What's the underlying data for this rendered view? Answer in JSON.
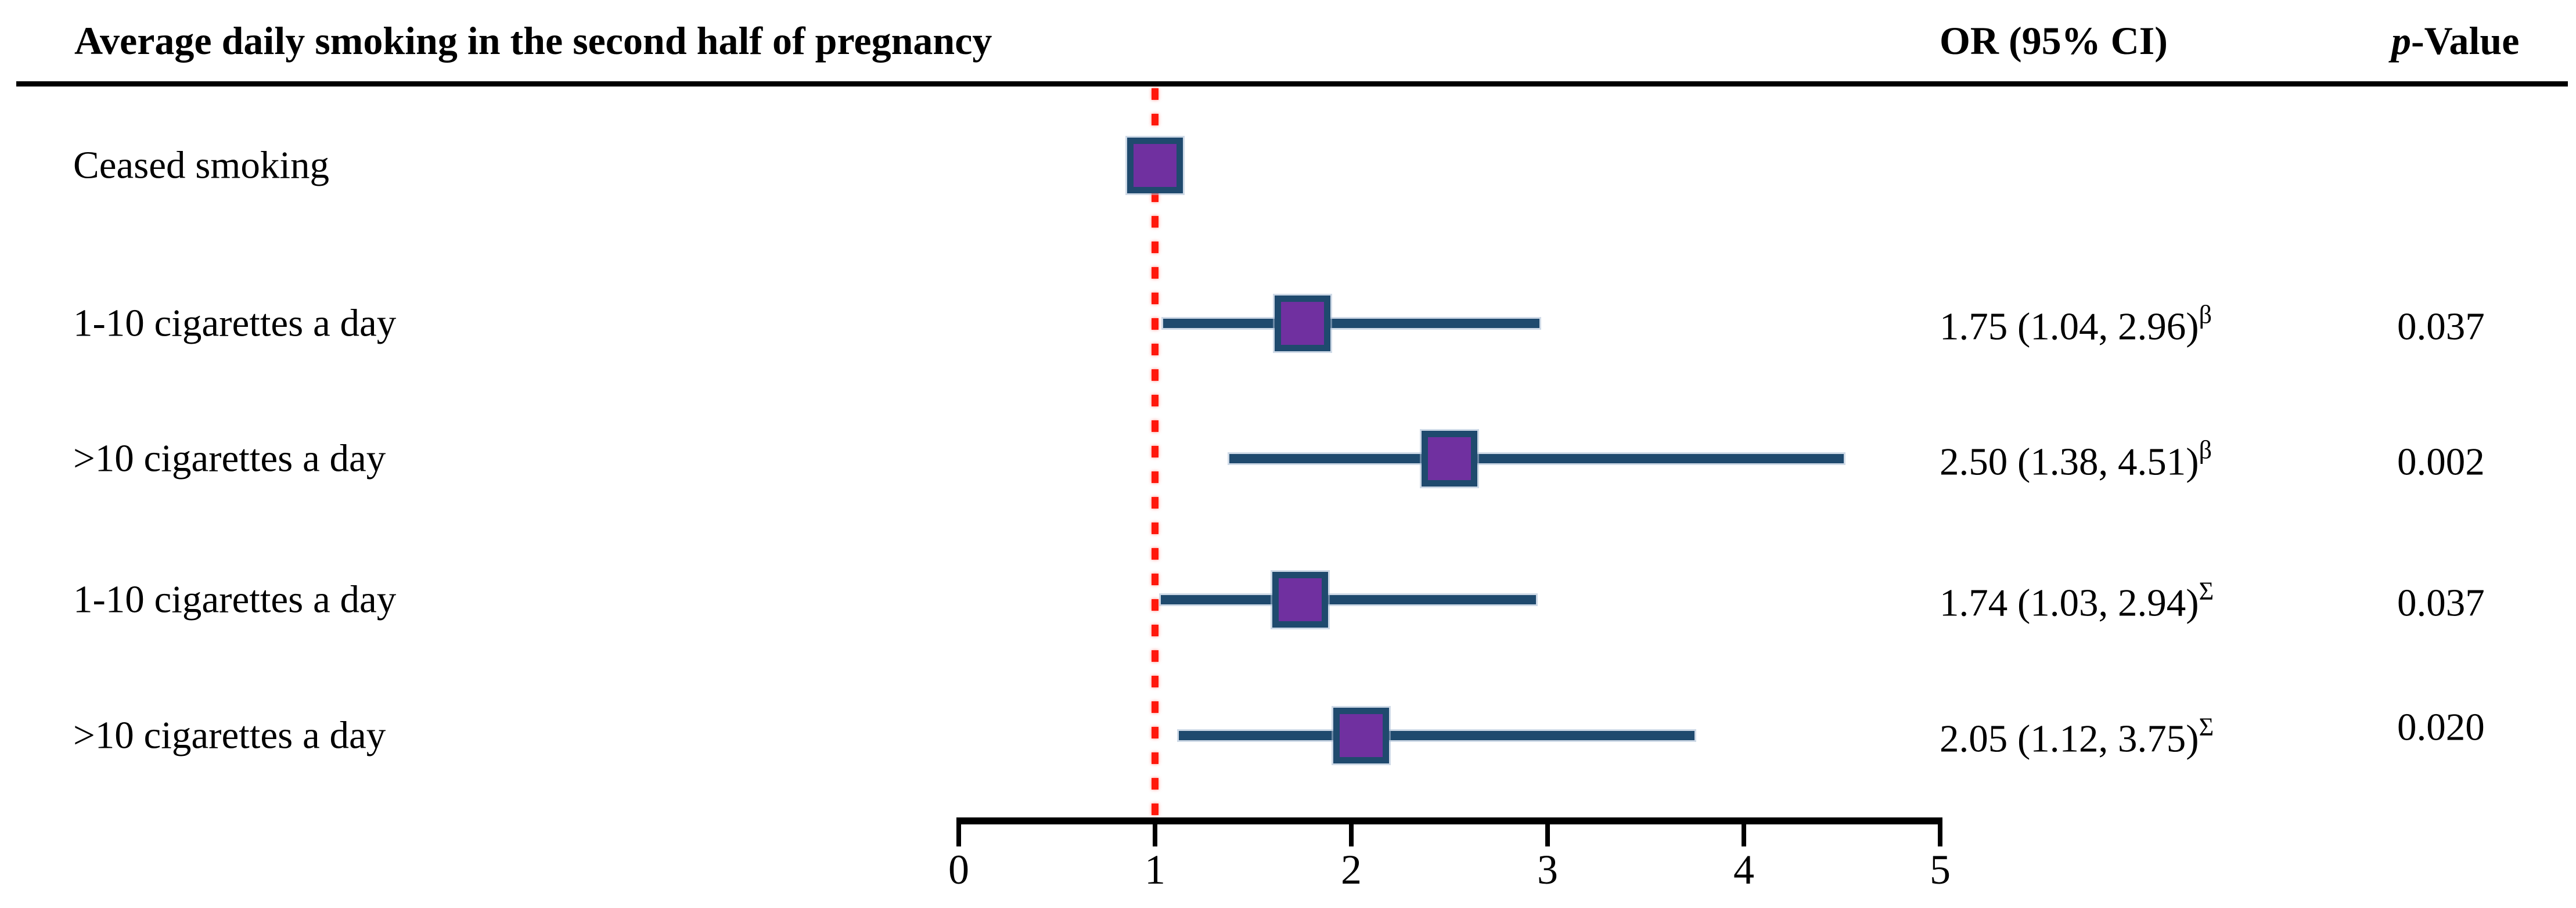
{
  "figure": {
    "title": "Average daily smoking in the second half of pregnancy",
    "columns": {
      "or_header": "OR (95% CI)",
      "p_header": "p-Value",
      "p_header_italic": "p",
      "p_header_rest": "-Value"
    }
  },
  "chart_data": {
    "type": "forest",
    "title": "Average daily smoking in the second half of pregnancy",
    "or_column_header": "OR (95% CI)",
    "p_column_header": "p-Value",
    "x_axis": {
      "min": 0,
      "max": 5,
      "ticks": [
        0,
        1,
        2,
        3,
        4,
        5
      ],
      "reference_line": 1,
      "grid": false
    },
    "marker": "square",
    "rows": [
      {
        "label": "Ceased smoking",
        "or": 1.0,
        "ci_low": null,
        "ci_high": null,
        "or_text": "",
        "sup": "",
        "p": ""
      },
      {
        "label": "1-10 cigarettes a day",
        "or": 1.75,
        "ci_low": 1.04,
        "ci_high": 2.96,
        "or_text": "1.75 (1.04, 2.96)",
        "sup": "β",
        "p": "0.037"
      },
      {
        "label": ">10 cigarettes a day",
        "or": 2.5,
        "ci_low": 1.38,
        "ci_high": 4.51,
        "or_text": "2.50 (1.38, 4.51)",
        "sup": "β",
        "p": "0.002"
      },
      {
        "label": "1-10 cigarettes a day",
        "or": 1.74,
        "ci_low": 1.03,
        "ci_high": 2.94,
        "or_text": "1.74 (1.03, 2.94)",
        "sup": "Σ",
        "p": "0.037"
      },
      {
        "label": ">10 cigarettes a day",
        "or": 2.05,
        "ci_low": 1.12,
        "ci_high": 3.75,
        "or_text": "2.05 (1.12, 3.75)",
        "sup": "Σ",
        "p": "0.020"
      }
    ],
    "colors": {
      "marker_fill": "#7030A0",
      "marker_border": "#1F4A6E",
      "ci_line": "#1F4A6E",
      "reference_line": "#FF180C",
      "axis": "#000000",
      "text": "#000000",
      "background": "#FFFFFF"
    }
  }
}
